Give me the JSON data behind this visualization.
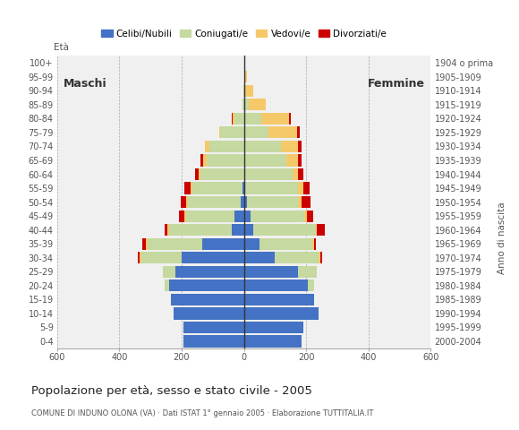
{
  "age_groups": [
    "0-4",
    "5-9",
    "10-14",
    "15-19",
    "20-24",
    "25-29",
    "30-34",
    "35-39",
    "40-44",
    "45-49",
    "50-54",
    "55-59",
    "60-64",
    "65-69",
    "70-74",
    "75-79",
    "80-84",
    "85-89",
    "90-94",
    "95-99",
    "100+"
  ],
  "birth_years": [
    "2000-2004",
    "1995-1999",
    "1990-1994",
    "1985-1989",
    "1980-1984",
    "1975-1979",
    "1970-1974",
    "1965-1969",
    "1960-1964",
    "1955-1959",
    "1950-1954",
    "1945-1949",
    "1940-1944",
    "1935-1939",
    "1930-1934",
    "1925-1929",
    "1920-1924",
    "1915-1919",
    "1910-1914",
    "1905-1909",
    "1904 o prima"
  ],
  "male": {
    "celibe": [
      195,
      195,
      225,
      235,
      240,
      220,
      200,
      135,
      40,
      30,
      10,
      5,
      0,
      0,
      0,
      0,
      0,
      0,
      0,
      0,
      0
    ],
    "coniugato": [
      0,
      0,
      0,
      0,
      15,
      40,
      130,
      175,
      200,
      155,
      170,
      160,
      140,
      120,
      110,
      75,
      30,
      5,
      2,
      0,
      0
    ],
    "vedovo": [
      0,
      0,
      0,
      0,
      0,
      0,
      5,
      5,
      5,
      5,
      5,
      5,
      5,
      10,
      15,
      5,
      5,
      0,
      0,
      0,
      0
    ],
    "divorziato": [
      0,
      0,
      0,
      0,
      0,
      0,
      5,
      10,
      10,
      18,
      18,
      20,
      12,
      10,
      0,
      0,
      5,
      0,
      0,
      0,
      0
    ]
  },
  "female": {
    "celibe": [
      185,
      190,
      240,
      225,
      205,
      175,
      100,
      50,
      30,
      20,
      10,
      5,
      0,
      0,
      0,
      0,
      0,
      0,
      0,
      0,
      0
    ],
    "coniugato": [
      0,
      0,
      0,
      0,
      20,
      60,
      140,
      170,
      200,
      175,
      165,
      170,
      155,
      135,
      120,
      80,
      55,
      15,
      5,
      2,
      0
    ],
    "vedovo": [
      0,
      0,
      0,
      0,
      0,
      0,
      5,
      5,
      5,
      8,
      10,
      15,
      20,
      40,
      55,
      90,
      90,
      55,
      25,
      8,
      0
    ],
    "divorziato": [
      0,
      0,
      0,
      0,
      0,
      0,
      5,
      5,
      25,
      20,
      30,
      20,
      15,
      10,
      10,
      10,
      5,
      0,
      0,
      0,
      0
    ]
  },
  "colors": {
    "celibe": "#4472c4",
    "coniugato": "#c5d9a0",
    "vedovo": "#f5c96a",
    "divorziato": "#cc0000"
  },
  "legend_labels": [
    "Celibi/Nubili",
    "Coniugati/e",
    "Vedovi/e",
    "Divorziati/e"
  ],
  "title": "Popolazione per età, sesso e stato civile - 2005",
  "subtitle": "COMUNE DI INDUNO OLONA (VA) · Dati ISTAT 1° gennaio 2005 · Elaborazione TUTTITALIA.IT",
  "ylabel_left": "Età",
  "ylabel_right": "Anno di nascita",
  "xlabel_left": "Maschi",
  "xlabel_right": "Femmine",
  "xlim": 600,
  "bg_color": "#ffffff",
  "plot_bg_color": "#f0f0f0"
}
